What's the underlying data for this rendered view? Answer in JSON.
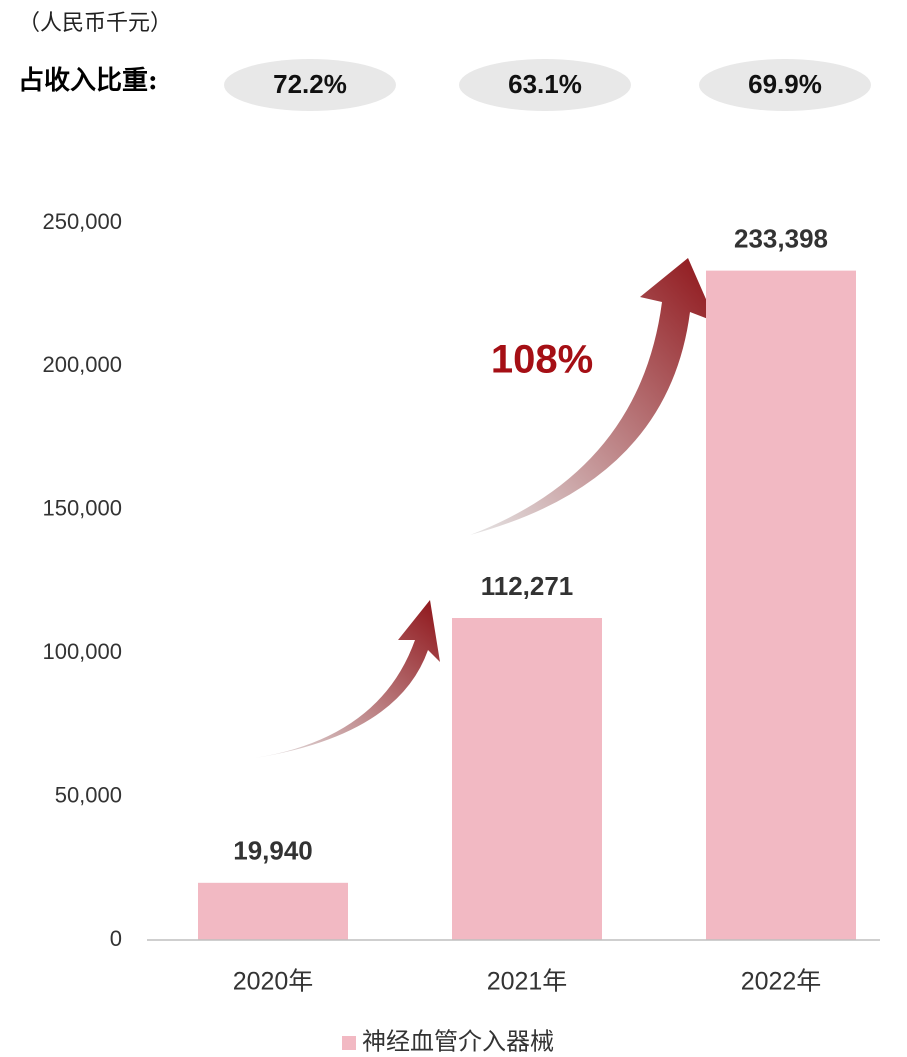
{
  "chart_data": {
    "type": "bar",
    "unit_label": "（人民币千元）",
    "share_label": "占收入比重:",
    "shares": [
      "72.2%",
      "63.1%",
      "69.9%"
    ],
    "annotation": "108%",
    "categories": [
      "2020年",
      "2021年",
      "2022年"
    ],
    "series": [
      {
        "name": "神经血管介入器械",
        "color": "#f2b9c3",
        "values": [
          19940,
          112271,
          233398
        ],
        "value_labels": [
          "19,940",
          "112,271",
          "233,398"
        ]
      }
    ],
    "ylim": [
      0,
      250000
    ],
    "yticks": [
      0,
      {
        "value": 50000,
        "label": "50,000"
      },
      {
        "value": 100000,
        "label": "100,000"
      },
      {
        "value": 150000,
        "label": "150,000"
      },
      {
        "value": 200000,
        "label": "200,000"
      },
      {
        "value": 250000,
        "label": "250,000"
      }
    ]
  }
}
